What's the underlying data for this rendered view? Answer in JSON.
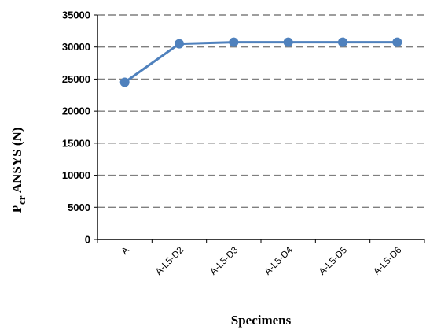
{
  "chart_data": {
    "type": "line",
    "categories": [
      "A",
      "A-L5-D2",
      "A-L5-D3",
      "A-L5-D4",
      "A-L5-D5",
      "A-L5-D6"
    ],
    "series": [
      {
        "values": [
          24500,
          30500,
          30750,
          30750,
          30750,
          30750
        ]
      }
    ],
    "ylim": [
      0,
      35000
    ],
    "yticks": [
      "0",
      "5000",
      "10000",
      "15000",
      "20000",
      "25000",
      "30000",
      "35000"
    ],
    "xlabel": "Specimens",
    "ylabel": {
      "main": "P",
      "sub": "cr",
      "rest": " ANSYS (N)"
    },
    "grid": "horizontal dashed",
    "legend": "none",
    "colors": {
      "line": "#4f81bd",
      "grid": "#7f7f7f",
      "axis": "#000000"
    }
  }
}
